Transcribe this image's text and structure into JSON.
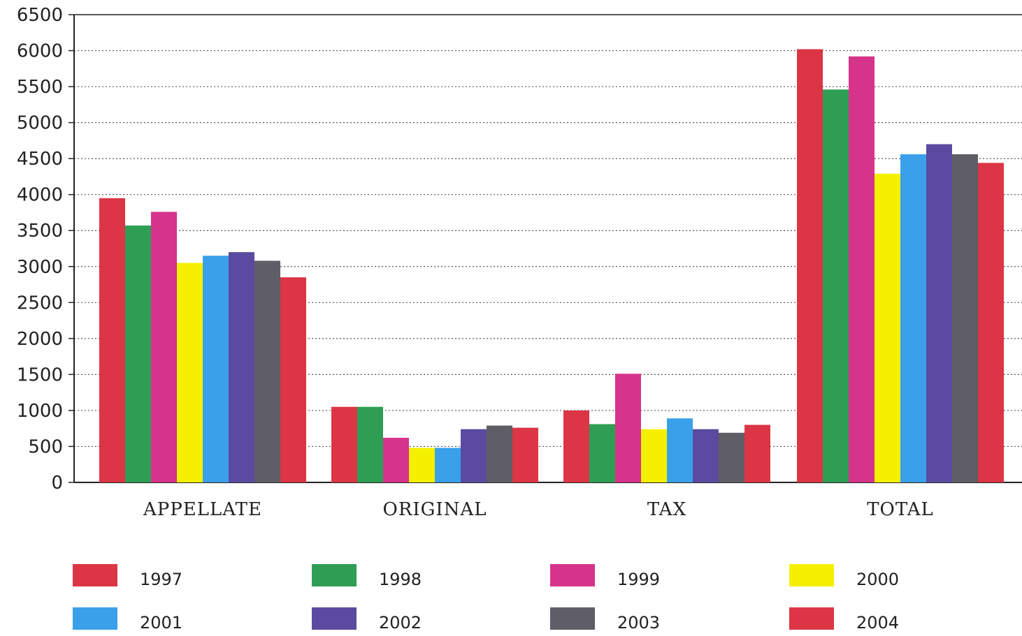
{
  "chart_data": {
    "type": "bar",
    "title": "",
    "xlabel": "",
    "ylabel": "",
    "ylim": [
      0,
      6500
    ],
    "yticks": [
      0,
      500,
      1000,
      1500,
      2000,
      2500,
      3000,
      3500,
      4000,
      4500,
      5000,
      5500,
      6000,
      6500
    ],
    "grid": true,
    "legend_position": "bottom",
    "categories": [
      "APPELLATE",
      "ORIGINAL",
      "TAX",
      "TOTAL"
    ],
    "series": [
      {
        "name": "1997",
        "color": "#dc3545",
        "values": [
          3950,
          1050,
          1000,
          6020
        ]
      },
      {
        "name": "1998",
        "color": "#2e9e54",
        "values": [
          3570,
          1050,
          810,
          5460
        ]
      },
      {
        "name": "1999",
        "color": "#d6338a",
        "values": [
          3760,
          620,
          1510,
          5920
        ]
      },
      {
        "name": "2000",
        "color": "#f5f000",
        "values": [
          3050,
          480,
          740,
          4290
        ]
      },
      {
        "name": "2001",
        "color": "#3aa0ea",
        "values": [
          3150,
          480,
          890,
          4560
        ]
      },
      {
        "name": "2002",
        "color": "#5a4ba0",
        "values": [
          3200,
          740,
          740,
          4700
        ]
      },
      {
        "name": "2003",
        "color": "#5f5d66",
        "values": [
          3080,
          790,
          690,
          4560
        ]
      },
      {
        "name": "2004",
        "color": "#dc3545",
        "values": [
          2850,
          760,
          800,
          4440
        ]
      }
    ]
  }
}
